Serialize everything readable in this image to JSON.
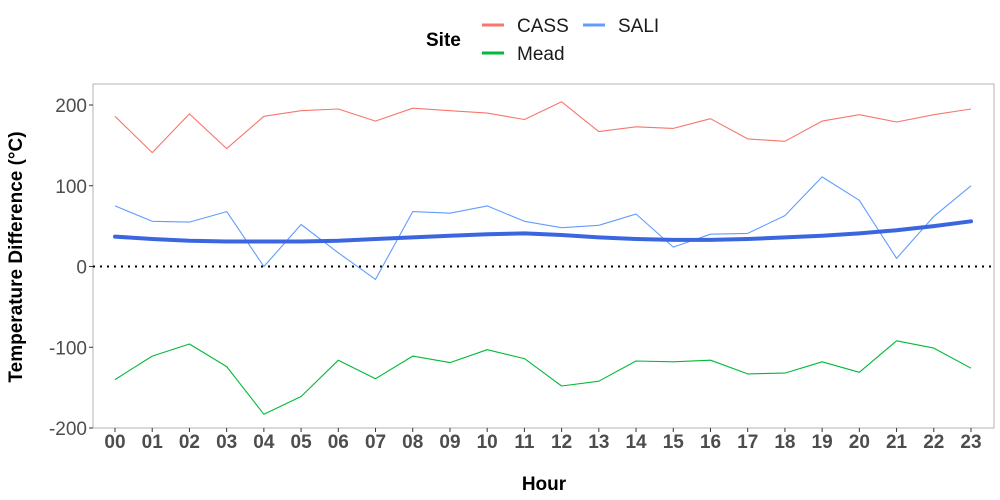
{
  "chart_data": {
    "type": "line",
    "title": "",
    "xlabel": "Hour",
    "ylabel": "Temperature Difference (°C)",
    "categories": [
      "00",
      "01",
      "02",
      "03",
      "04",
      "05",
      "06",
      "07",
      "08",
      "09",
      "10",
      "11",
      "12",
      "13",
      "14",
      "15",
      "16",
      "17",
      "18",
      "19",
      "20",
      "21",
      "22",
      "23"
    ],
    "ylim": [
      -200,
      225
    ],
    "yticks": [
      -200,
      -100,
      0,
      100,
      200
    ],
    "ytick_labels": [
      "-200",
      "-100",
      "0",
      "100",
      "200"
    ],
    "grid": false,
    "legend": {
      "title": "Site",
      "position": "top"
    },
    "series": [
      {
        "name": "CASS",
        "color": "#f8766d",
        "values": [
          186,
          141,
          189,
          146,
          186,
          193,
          195,
          180,
          196,
          193,
          190,
          182,
          204,
          167,
          173,
          171,
          183,
          158,
          155,
          180,
          188,
          179,
          188,
          195
        ]
      },
      {
        "name": "Mead",
        "color": "#00ba38",
        "values": [
          -140,
          -111,
          -96,
          -124,
          -183,
          -161,
          -116,
          -139,
          -111,
          -119,
          -103,
          -114,
          -148,
          -142,
          -117,
          -118,
          -116,
          -133,
          -132,
          -118,
          -131,
          -92,
          -101,
          -126
        ]
      },
      {
        "name": "SALI",
        "color": "#619cff",
        "values": [
          75,
          56,
          55,
          68,
          0,
          52,
          17,
          -16,
          68,
          66,
          75,
          56,
          48,
          51,
          65,
          24,
          40,
          41,
          63,
          111,
          82,
          10,
          62,
          100
        ]
      }
    ],
    "trend": {
      "color": "#3b66e0",
      "values": [
        37,
        34,
        32,
        31,
        31,
        31,
        32,
        34,
        36,
        38,
        40,
        41,
        39,
        36,
        34,
        33,
        33,
        34,
        36,
        38,
        41,
        45,
        50,
        56
      ]
    },
    "reference_line": {
      "y": 0,
      "style": "dotted",
      "color": "#000000"
    }
  }
}
